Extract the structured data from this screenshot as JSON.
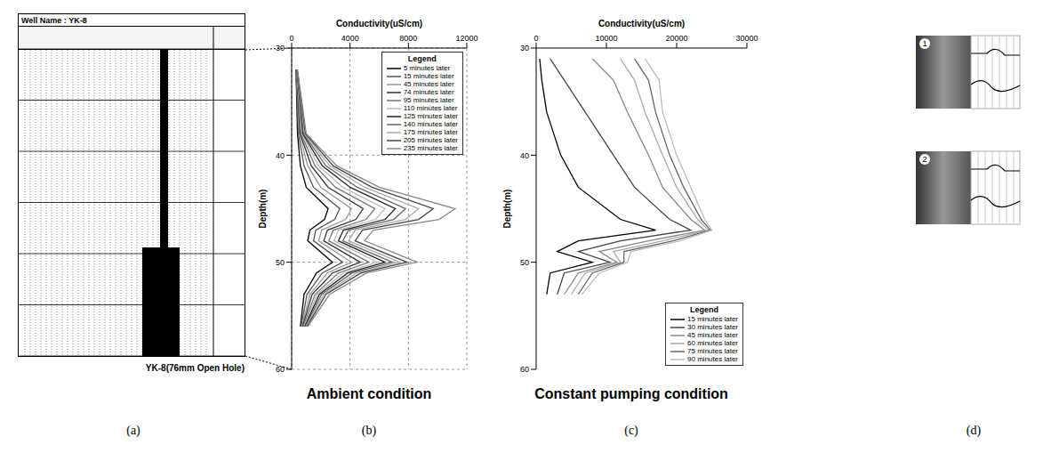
{
  "figure": {
    "panel_labels": [
      "(a)",
      "(b)",
      "(c)",
      "(d)"
    ],
    "well_log": {
      "title": "Well Name : YK-8",
      "caption": "YK-8(76mm Open Hole)"
    },
    "images": {
      "labels": [
        "1",
        "2"
      ]
    }
  },
  "chart_data": [
    {
      "type": "line",
      "caption": "Ambient condition",
      "x_label": "Conductivity(uS/cm)",
      "y_label": "Depth(m)",
      "xlim": [
        0,
        12000
      ],
      "xticks": [
        0,
        4000,
        8000,
        12000
      ],
      "ylim": [
        30,
        60
      ],
      "yticks": [
        30,
        40,
        50,
        60
      ],
      "grid": true,
      "legend": "upper right",
      "legend_title": "Legend",
      "y": [
        32,
        38,
        41,
        43,
        45,
        46,
        47,
        48,
        50,
        51,
        53,
        56
      ],
      "series": [
        {
          "name": "5 minutes later",
          "color": "#000000",
          "x": [
            300,
            400,
            600,
            1000,
            2500,
            2250,
            1250,
            1100,
            2800,
            1700,
            850,
            600
          ]
        },
        {
          "name": "15 minutes later",
          "color": "#555555",
          "x": [
            300,
            460,
            850,
            1500,
            3300,
            2950,
            1650,
            1500,
            3500,
            2100,
            1050,
            650
          ]
        },
        {
          "name": "45 minutes later",
          "color": "#999999",
          "x": [
            320,
            520,
            1100,
            2000,
            4100,
            3700,
            2050,
            1850,
            4100,
            2450,
            1250,
            700
          ]
        },
        {
          "name": "74 minutes later",
          "color": "#333333",
          "x": [
            320,
            580,
            1350,
            2500,
            4900,
            4400,
            2450,
            2200,
            4700,
            2800,
            1400,
            750
          ]
        },
        {
          "name": "95 minutes later",
          "color": "#777777",
          "x": [
            340,
            640,
            1600,
            3000,
            5700,
            5100,
            2850,
            2550,
            5300,
            3200,
            1600,
            800
          ]
        },
        {
          "name": "110 minutes later",
          "color": "#bbbbbb",
          "x": [
            340,
            700,
            1850,
            3500,
            6400,
            5750,
            3200,
            2900,
            5900,
            3550,
            1750,
            850
          ]
        },
        {
          "name": "125 minutes later",
          "color": "#222222",
          "x": [
            360,
            760,
            2100,
            4000,
            7100,
            6400,
            3550,
            3200,
            6400,
            3850,
            1900,
            900
          ]
        },
        {
          "name": "140 minutes later",
          "color": "#666666",
          "x": [
            360,
            820,
            2350,
            4500,
            7800,
            7000,
            3900,
            3500,
            6900,
            4150,
            2050,
            950
          ]
        },
        {
          "name": "175 minutes later",
          "color": "#aaaaaa",
          "x": [
            380,
            880,
            2600,
            5000,
            8700,
            7800,
            4350,
            3900,
            7400,
            4450,
            2200,
            1000
          ]
        },
        {
          "name": "205 minutes later",
          "color": "#444444",
          "x": [
            380,
            940,
            2850,
            5500,
            9700,
            8700,
            4850,
            4350,
            7900,
            4750,
            2350,
            1050
          ]
        },
        {
          "name": "235 minutes later",
          "color": "#888888",
          "x": [
            400,
            1000,
            3100,
            6000,
            11200,
            10100,
            5600,
            5000,
            8600,
            5150,
            2600,
            1100
          ]
        }
      ]
    },
    {
      "type": "line",
      "caption": "Constant pumping condition",
      "x_label": "Conductivity(uS/cm)",
      "y_label": "Depth(m)",
      "xlim": [
        0,
        30000
      ],
      "xticks": [
        0,
        10000,
        20000,
        30000
      ],
      "ylim": [
        30,
        60
      ],
      "yticks": [
        30,
        40,
        50,
        60
      ],
      "grid": false,
      "legend": "lower right",
      "legend_title": "Legend",
      "y": [
        31,
        33,
        36,
        40,
        43,
        46,
        47,
        48,
        49,
        50,
        51,
        53
      ],
      "series": [
        {
          "name": "15 minutes later",
          "color": "#000000",
          "x": [
            500,
            800,
            1500,
            3500,
            6000,
            12000,
            17000,
            6000,
            3000,
            8000,
            2000,
            1500
          ]
        },
        {
          "name": "30 minutes later",
          "color": "#444444",
          "x": [
            2000,
            4000,
            7000,
            11000,
            14000,
            19000,
            22000,
            12000,
            6000,
            10500,
            4000,
            3000
          ]
        },
        {
          "name": "45 minutes later",
          "color": "#888888",
          "x": [
            8000,
            11000,
            13000,
            16000,
            18000,
            22000,
            24000,
            16000,
            9000,
            11500,
            6000,
            4000
          ]
        },
        {
          "name": "60 minutes later",
          "color": "#aaaaaa",
          "x": [
            12000,
            14000,
            15500,
            18000,
            20000,
            23000,
            24500,
            18000,
            11000,
            12000,
            7000,
            5000
          ]
        },
        {
          "name": "75 minutes later",
          "color": "#666666",
          "x": [
            14000,
            16000,
            17000,
            19000,
            21000,
            23500,
            24800,
            19500,
            12500,
            12500,
            8000,
            6000
          ]
        },
        {
          "name": "90 minutes later",
          "color": "#bbbbbb",
          "x": [
            15500,
            17500,
            18000,
            20000,
            22000,
            24000,
            25000,
            20500,
            13500,
            13000,
            9000,
            6500
          ]
        }
      ]
    }
  ]
}
